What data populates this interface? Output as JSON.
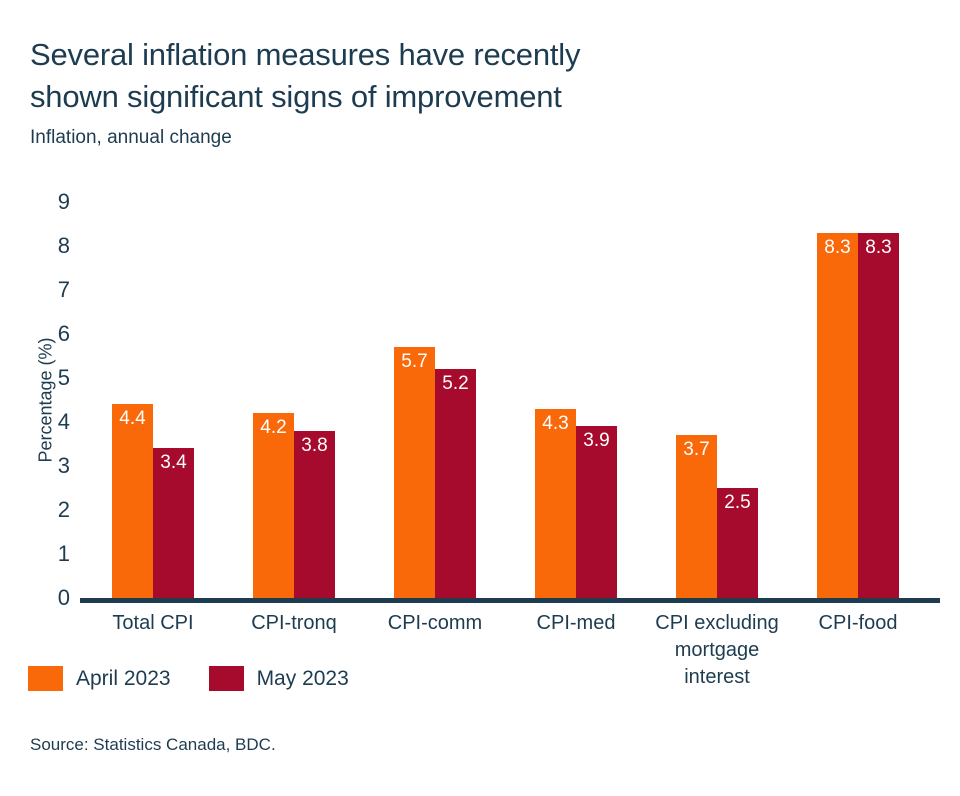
{
  "header": {
    "title_line1": "Several inflation measures have recently",
    "title_line2": "shown significant signs of improvement",
    "subtitle": "Inflation, annual change"
  },
  "chart_data": {
    "type": "bar",
    "categories": [
      "Total CPI",
      "CPI-tronq",
      "CPI-comm",
      "CPI-med",
      "CPI excluding mortgage interest",
      "CPI-food"
    ],
    "series": [
      {
        "name": "April 2023",
        "color": "#f9690a",
        "values": [
          4.4,
          4.2,
          5.7,
          4.3,
          3.7,
          8.3
        ]
      },
      {
        "name": "May 2023",
        "color": "#a60b2d",
        "values": [
          3.4,
          3.8,
          5.2,
          3.9,
          2.5,
          8.3
        ]
      }
    ],
    "value_labels": [
      [
        "4.4",
        "4.2",
        "5.7",
        "4.3",
        "3.7",
        "8.3"
      ],
      [
        "3.4",
        "3.8",
        "5.2",
        "3.9",
        "2.5",
        "8.3"
      ]
    ],
    "ylabel": "Percentage (%)",
    "ylim": [
      0,
      9
    ],
    "yticks": [
      "0",
      "1",
      "2",
      "3",
      "4",
      "5",
      "6",
      "7",
      "8",
      "9"
    ],
    "grid": false,
    "legend_position": "bottom-left"
  },
  "footer": {
    "source": "Source: Statistics Canada, BDC."
  },
  "colors": {
    "text": "#1e3c50",
    "axis": "#1e3c50",
    "april_2023": "#f9690a",
    "may_2023": "#a60b2d",
    "background": "#ffffff"
  }
}
